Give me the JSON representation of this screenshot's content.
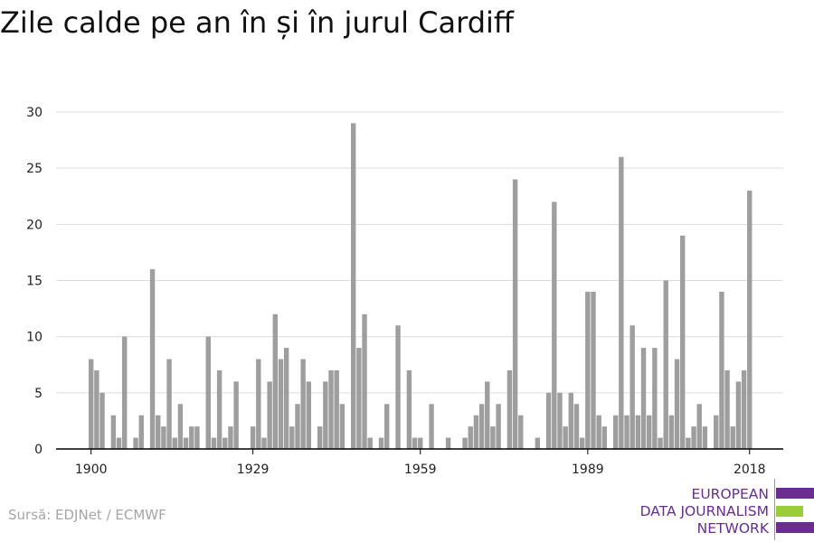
{
  "title": "Zile calde pe an în și în jurul Cardiff",
  "source": "Sursă: EDJNet / ECMWF",
  "logo": {
    "lines": [
      "EUROPEAN",
      "DATA JOURNALISM",
      "NETWORK"
    ],
    "colors": {
      "purple": "#6b2d8f",
      "green": "#9bcc3a"
    }
  },
  "colors": {
    "bar": "#9e9e9e",
    "grid": "#dddddd",
    "axis": "#000000",
    "text": "#222222"
  },
  "chart_data": {
    "type": "bar",
    "xlabel": "",
    "ylabel": "",
    "ylim": [
      0,
      30
    ],
    "yticks": [
      0,
      5,
      10,
      15,
      20,
      25,
      30
    ],
    "xticks": [
      1900,
      1929,
      1959,
      1989,
      2018
    ],
    "grid": true,
    "categories": [
      1900,
      1901,
      1902,
      1903,
      1904,
      1905,
      1906,
      1907,
      1908,
      1909,
      1910,
      1911,
      1912,
      1913,
      1914,
      1915,
      1916,
      1917,
      1918,
      1919,
      1920,
      1921,
      1922,
      1923,
      1924,
      1925,
      1926,
      1927,
      1928,
      1929,
      1930,
      1931,
      1932,
      1933,
      1934,
      1935,
      1936,
      1937,
      1938,
      1939,
      1940,
      1941,
      1942,
      1943,
      1944,
      1945,
      1946,
      1947,
      1948,
      1949,
      1950,
      1951,
      1952,
      1953,
      1954,
      1955,
      1956,
      1957,
      1958,
      1959,
      1960,
      1961,
      1962,
      1963,
      1964,
      1965,
      1966,
      1967,
      1968,
      1969,
      1970,
      1971,
      1972,
      1973,
      1974,
      1975,
      1976,
      1977,
      1978,
      1979,
      1980,
      1981,
      1982,
      1983,
      1984,
      1985,
      1986,
      1987,
      1988,
      1989,
      1990,
      1991,
      1992,
      1993,
      1994,
      1995,
      1996,
      1997,
      1998,
      1999,
      2000,
      2001,
      2002,
      2003,
      2004,
      2005,
      2006,
      2007,
      2008,
      2009,
      2010,
      2011,
      2012,
      2013,
      2014,
      2015,
      2016,
      2017,
      2018
    ],
    "values": [
      8,
      7,
      5,
      0,
      3,
      1,
      10,
      0,
      1,
      3,
      0,
      16,
      3,
      2,
      8,
      1,
      4,
      1,
      2,
      2,
      0,
      10,
      1,
      7,
      1,
      2,
      6,
      0,
      0,
      2,
      8,
      1,
      6,
      12,
      8,
      9,
      2,
      4,
      8,
      6,
      0,
      2,
      6,
      7,
      7,
      4,
      0,
      29,
      9,
      12,
      1,
      0,
      1,
      4,
      0,
      11,
      0,
      7,
      1,
      1,
      0,
      4,
      0,
      0,
      1,
      0,
      0,
      1,
      2,
      3,
      4,
      6,
      2,
      4,
      0,
      7,
      24,
      3,
      0,
      0,
      1,
      0,
      5,
      22,
      5,
      2,
      5,
      4,
      1,
      14,
      14,
      3,
      2,
      0,
      3,
      26,
      3,
      11,
      3,
      9,
      3,
      9,
      1,
      15,
      3,
      8,
      19,
      1,
      2,
      4,
      2,
      0,
      3,
      14,
      7,
      2,
      6,
      7,
      23
    ]
  }
}
